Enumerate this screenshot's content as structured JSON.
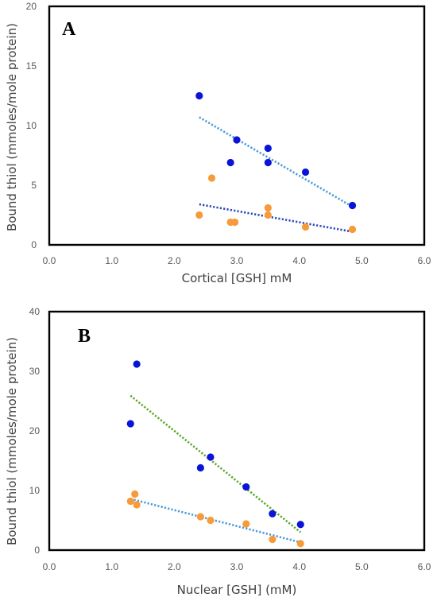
{
  "chart_data": [
    {
      "type": "scatter",
      "panel_label": "A",
      "xlabel": "Cortical [GSH] mM",
      "ylabel": "Bound thiol (mmoles/mole protein)",
      "xlim": [
        0,
        6
      ],
      "ylim": [
        0,
        20
      ],
      "x_ticks": [
        "0.0",
        "1.0",
        "2.0",
        "3.0",
        "4.0",
        "5.0",
        "6.0"
      ],
      "y_ticks": [
        "0",
        "5",
        "10",
        "15",
        "20"
      ],
      "grid": false,
      "legend": "none",
      "series": [
        {
          "color": "#0a14d8",
          "points": [
            [
              2.4,
              12.5
            ],
            [
              2.9,
              6.9
            ],
            [
              3.0,
              8.8
            ],
            [
              3.5,
              8.1
            ],
            [
              3.5,
              6.9
            ],
            [
              4.1,
              6.1
            ],
            [
              4.85,
              3.3
            ]
          ],
          "trendline": {
            "x": [
              2.4,
              4.85
            ],
            "y": [
              10.7,
              3.2
            ],
            "color": "#4a9ad8"
          }
        },
        {
          "color": "#f79a3a",
          "points": [
            [
              2.4,
              2.5
            ],
            [
              2.6,
              5.6
            ],
            [
              2.9,
              1.9
            ],
            [
              2.97,
              1.9
            ],
            [
              3.5,
              3.1
            ],
            [
              3.5,
              2.5
            ],
            [
              4.1,
              1.5
            ],
            [
              4.85,
              1.3
            ]
          ],
          "trendline": {
            "x": [
              2.4,
              4.85
            ],
            "y": [
              3.4,
              1.1
            ],
            "color": "#2a4ab8"
          }
        }
      ]
    },
    {
      "type": "scatter",
      "panel_label": "B",
      "xlabel": "Nuclear [GSH] (mM)",
      "ylabel": "Bound thiol (mmoles/mole protein)",
      "xlim": [
        0,
        6
      ],
      "ylim": [
        0,
        40
      ],
      "x_ticks": [
        "0.0",
        "1.0",
        "2.0",
        "3.0",
        "4.0",
        "5.0",
        "6.0"
      ],
      "y_ticks": [
        "0",
        "10",
        "20",
        "30",
        "40"
      ],
      "grid": false,
      "legend": "none",
      "series": [
        {
          "color": "#0a14d8",
          "points": [
            [
              1.3,
              21.2
            ],
            [
              1.4,
              31.2
            ],
            [
              2.42,
              13.8
            ],
            [
              2.58,
              15.6
            ],
            [
              3.15,
              10.6
            ],
            [
              3.57,
              6.1
            ],
            [
              4.02,
              4.3
            ]
          ],
          "trendline": {
            "x": [
              1.3,
              4.02
            ],
            "y": [
              25.9,
              3.0
            ],
            "color": "#5aa82a"
          }
        },
        {
          "color": "#f79a3a",
          "points": [
            [
              1.3,
              8.2
            ],
            [
              1.37,
              9.4
            ],
            [
              1.4,
              7.6
            ],
            [
              2.42,
              5.6
            ],
            [
              2.58,
              5.0
            ],
            [
              3.15,
              4.4
            ],
            [
              3.57,
              1.8
            ],
            [
              4.02,
              1.1
            ]
          ],
          "trendline": {
            "x": [
              1.3,
              4.02
            ],
            "y": [
              8.6,
              1.3
            ],
            "color": "#4a9ad8"
          }
        }
      ]
    }
  ]
}
